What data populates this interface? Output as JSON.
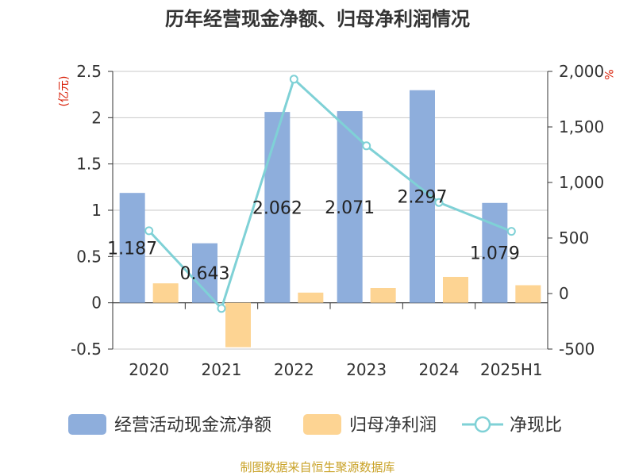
{
  "chart_data": {
    "type": "bar",
    "title": "历年经营现金净额、归母净利润情况",
    "categories": [
      "2020",
      "2021",
      "2022",
      "2023",
      "2024",
      "2025H1"
    ],
    "series": [
      {
        "name": "经营活动现金流净额",
        "axis": "left",
        "kind": "bar",
        "values": [
          1.187,
          0.643,
          2.062,
          2.071,
          2.297,
          1.079
        ],
        "labels": [
          "1.187",
          "0.643",
          "2.062",
          "2.071",
          "2.297",
          "1.079"
        ]
      },
      {
        "name": "归母净利润",
        "axis": "left",
        "kind": "bar",
        "values": [
          0.21,
          -0.48,
          0.11,
          0.16,
          0.28,
          0.19
        ]
      },
      {
        "name": "净现比",
        "axis": "right",
        "kind": "line",
        "values": [
          565,
          -134,
          1930,
          1330,
          820,
          560
        ]
      }
    ],
    "left_axis": {
      "unit": "(亿元)",
      "ylim": [
        -0.5,
        2.5
      ],
      "ticks": [
        2.5,
        2,
        1.5,
        1,
        0.5,
        0,
        -0.5
      ],
      "tick_labels": [
        "2.5",
        "2",
        "1.5",
        "1",
        "0.5",
        "0",
        "-0.5"
      ]
    },
    "right_axis": {
      "unit": "%",
      "ylim": [
        -500,
        2000
      ],
      "ticks": [
        2000,
        1500,
        1000,
        500,
        0,
        -500
      ],
      "tick_labels": [
        "2,000",
        "1,500",
        "1,000",
        "500",
        "0",
        "-500"
      ]
    },
    "grid": true,
    "legend_position": "bottom",
    "colors": {
      "bar1": "#8eaedc",
      "bar2": "#fdd493",
      "line": "#7fd1d6"
    }
  },
  "source": "制图数据来自恒生聚源数据库"
}
